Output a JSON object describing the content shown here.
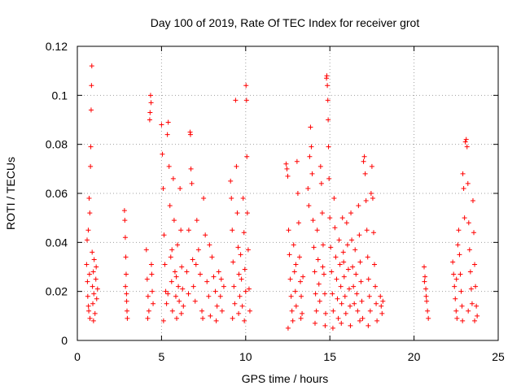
{
  "chart_data": {
    "type": "scatter",
    "title": "Day 100 of 2019, Rate Of TEC Index for receiver grot",
    "xlabel": "GPS time / hours",
    "ylabel": "ROTI / TECUs",
    "xlim": [
      0,
      25
    ],
    "ylim": [
      0,
      0.12
    ],
    "x_ticks": [
      0,
      5,
      10,
      15,
      20,
      25
    ],
    "x_tick_labels": [
      "0",
      "5",
      "10",
      "15",
      "20",
      "25"
    ],
    "y_ticks": [
      0,
      0.02,
      0.04,
      0.06,
      0.08,
      0.1,
      0.12
    ],
    "y_tick_labels": [
      "0",
      "0.02",
      "0.04",
      "0.06",
      "0.08",
      "0.1",
      "0.12"
    ],
    "grid": true,
    "marker": "+",
    "color": "#ff0000",
    "series": [
      {
        "points": [
          [
            0.55,
            0.031
          ],
          [
            0.6,
            0.024
          ],
          [
            0.62,
            0.018
          ],
          [
            0.65,
            0.045
          ],
          [
            0.68,
            0.012
          ],
          [
            0.7,
            0.058
          ],
          [
            0.72,
            0.027
          ],
          [
            0.75,
            0.009
          ],
          [
            0.78,
            0.071
          ],
          [
            0.8,
            0.079
          ],
          [
            0.82,
            0.094
          ],
          [
            0.84,
            0.104
          ],
          [
            0.86,
            0.112
          ],
          [
            0.88,
            0.036
          ],
          [
            0.9,
            0.022
          ],
          [
            0.92,
            0.015
          ],
          [
            0.95,
            0.028
          ],
          [
            0.98,
            0.019
          ],
          [
            1.0,
            0.033
          ],
          [
            1.05,
            0.011
          ],
          [
            1.1,
            0.025
          ],
          [
            1.15,
            0.017
          ],
          [
            1.2,
            0.021
          ],
          [
            0.58,
            0.041
          ],
          [
            0.74,
            0.052
          ],
          [
            0.96,
            0.008
          ],
          [
            1.12,
            0.03
          ],
          [
            0.66,
            0.014
          ],
          [
            2.8,
            0.053
          ],
          [
            2.82,
            0.049
          ],
          [
            2.85,
            0.042
          ],
          [
            2.88,
            0.034
          ],
          [
            2.9,
            0.027
          ],
          [
            2.92,
            0.019
          ],
          [
            2.95,
            0.012
          ],
          [
            2.97,
            0.009
          ],
          [
            2.86,
            0.022
          ],
          [
            2.93,
            0.016
          ],
          [
            4.1,
            0.037
          ],
          [
            4.15,
            0.025
          ],
          [
            4.2,
            0.018
          ],
          [
            4.25,
            0.012
          ],
          [
            4.3,
            0.09
          ],
          [
            4.32,
            0.093
          ],
          [
            4.35,
            0.1
          ],
          [
            4.38,
            0.097
          ],
          [
            4.4,
            0.031
          ],
          [
            4.45,
            0.02
          ],
          [
            4.5,
            0.015
          ],
          [
            4.18,
            0.009
          ],
          [
            4.42,
            0.027
          ],
          [
            5.0,
            0.088
          ],
          [
            5.05,
            0.076
          ],
          [
            5.1,
            0.062
          ],
          [
            5.15,
            0.043
          ],
          [
            5.2,
            0.031
          ],
          [
            5.25,
            0.02
          ],
          [
            5.3,
            0.015
          ],
          [
            5.35,
            0.084
          ],
          [
            5.4,
            0.089
          ],
          [
            5.45,
            0.071
          ],
          [
            5.5,
            0.055
          ],
          [
            5.55,
            0.034
          ],
          [
            5.6,
            0.024
          ],
          [
            5.65,
            0.012
          ],
          [
            5.7,
            0.066
          ],
          [
            5.75,
            0.049
          ],
          [
            5.8,
            0.028
          ],
          [
            5.85,
            0.018
          ],
          [
            5.9,
            0.009
          ],
          [
            5.95,
            0.039
          ],
          [
            6.0,
            0.022
          ],
          [
            6.05,
            0.016
          ],
          [
            6.1,
            0.062
          ],
          [
            6.15,
            0.045
          ],
          [
            6.2,
            0.03
          ],
          [
            5.12,
            0.008
          ],
          [
            5.38,
            0.019
          ],
          [
            5.62,
            0.037
          ],
          [
            5.88,
            0.026
          ],
          [
            6.18,
            0.011
          ],
          [
            6.25,
            0.021
          ],
          [
            6.3,
            0.014
          ],
          [
            6.5,
            0.028
          ],
          [
            6.6,
            0.019
          ],
          [
            6.7,
            0.085
          ],
          [
            6.72,
            0.084
          ],
          [
            6.75,
            0.07
          ],
          [
            6.8,
            0.064
          ],
          [
            6.85,
            0.033
          ],
          [
            6.9,
            0.022
          ],
          [
            7.0,
            0.016
          ],
          [
            7.1,
            0.049
          ],
          [
            7.2,
            0.037
          ],
          [
            7.3,
            0.027
          ],
          [
            7.4,
            0.012
          ],
          [
            7.5,
            0.058
          ],
          [
            7.6,
            0.043
          ],
          [
            7.7,
            0.024
          ],
          [
            7.8,
            0.018
          ],
          [
            7.9,
            0.01
          ],
          [
            8.0,
            0.034
          ],
          [
            8.1,
            0.026
          ],
          [
            8.2,
            0.02
          ],
          [
            8.3,
            0.014
          ],
          [
            8.4,
            0.028
          ],
          [
            8.5,
            0.018
          ],
          [
            8.6,
            0.012
          ],
          [
            8.7,
            0.022
          ],
          [
            6.62,
            0.045
          ],
          [
            7.05,
            0.031
          ],
          [
            7.45,
            0.009
          ],
          [
            7.85,
            0.039
          ],
          [
            8.25,
            0.008
          ],
          [
            8.55,
            0.025
          ],
          [
            9.1,
            0.065
          ],
          [
            9.15,
            0.058
          ],
          [
            9.2,
            0.045
          ],
          [
            9.25,
            0.032
          ],
          [
            9.3,
            0.022
          ],
          [
            9.35,
            0.015
          ],
          [
            9.4,
            0.098
          ],
          [
            9.45,
            0.071
          ],
          [
            9.5,
            0.052
          ],
          [
            9.55,
            0.038
          ],
          [
            9.6,
            0.027
          ],
          [
            9.65,
            0.018
          ],
          [
            9.7,
            0.035
          ],
          [
            9.75,
            0.025
          ],
          [
            9.8,
            0.014
          ],
          [
            9.85,
            0.058
          ],
          [
            9.9,
            0.044
          ],
          [
            9.95,
            0.029
          ],
          [
            10.0,
            0.02
          ],
          [
            10.02,
            0.104
          ],
          [
            10.05,
            0.098
          ],
          [
            10.07,
            0.075
          ],
          [
            10.1,
            0.052
          ],
          [
            10.15,
            0.037
          ],
          [
            10.2,
            0.021
          ],
          [
            10.25,
            0.012
          ],
          [
            9.22,
            0.009
          ],
          [
            9.58,
            0.011
          ],
          [
            9.92,
            0.008
          ],
          [
            12.4,
            0.072
          ],
          [
            12.45,
            0.07
          ],
          [
            12.5,
            0.067
          ],
          [
            12.55,
            0.045
          ],
          [
            12.6,
            0.035
          ],
          [
            12.65,
            0.025
          ],
          [
            12.7,
            0.018
          ],
          [
            12.75,
            0.012
          ],
          [
            12.8,
            0.008
          ],
          [
            12.85,
            0.039
          ],
          [
            12.9,
            0.028
          ],
          [
            12.95,
            0.02
          ],
          [
            13.0,
            0.014
          ],
          [
            13.05,
            0.073
          ],
          [
            13.1,
            0.06
          ],
          [
            13.15,
            0.048
          ],
          [
            13.2,
            0.034
          ],
          [
            13.25,
            0.024
          ],
          [
            13.3,
            0.018
          ],
          [
            13.35,
            0.011
          ],
          [
            13.4,
            0.026
          ],
          [
            12.52,
            0.005
          ],
          [
            12.98,
            0.031
          ],
          [
            13.28,
            0.009
          ],
          [
            13.7,
            0.062
          ],
          [
            13.75,
            0.055
          ],
          [
            13.8,
            0.075
          ],
          [
            13.85,
            0.087
          ],
          [
            13.9,
            0.079
          ],
          [
            13.95,
            0.068
          ],
          [
            14.0,
            0.049
          ],
          [
            14.05,
            0.038
          ],
          [
            14.1,
            0.028
          ],
          [
            14.15,
            0.019
          ],
          [
            14.2,
            0.012
          ],
          [
            14.25,
            0.045
          ],
          [
            14.3,
            0.033
          ],
          [
            14.35,
            0.023
          ],
          [
            14.4,
            0.016
          ],
          [
            14.45,
            0.071
          ],
          [
            14.5,
            0.064
          ],
          [
            14.55,
            0.052
          ],
          [
            14.6,
            0.039
          ],
          [
            14.65,
            0.027
          ],
          [
            14.7,
            0.019
          ],
          [
            14.75,
            0.011
          ],
          [
            14.8,
            0.107
          ],
          [
            14.82,
            0.108
          ],
          [
            14.85,
            0.104
          ],
          [
            14.88,
            0.098
          ],
          [
            14.9,
            0.09
          ],
          [
            14.92,
            0.079
          ],
          [
            14.95,
            0.066
          ],
          [
            15.0,
            0.05
          ],
          [
            15.05,
            0.038
          ],
          [
            15.1,
            0.028
          ],
          [
            15.15,
            0.019
          ],
          [
            15.2,
            0.012
          ],
          [
            15.25,
            0.058
          ],
          [
            15.3,
            0.046
          ],
          [
            15.35,
            0.034
          ],
          [
            15.4,
            0.025
          ],
          [
            15.45,
            0.017
          ],
          [
            15.5,
            0.009
          ],
          [
            15.55,
            0.041
          ],
          [
            15.6,
            0.031
          ],
          [
            15.65,
            0.022
          ],
          [
            15.7,
            0.015
          ],
          [
            15.75,
            0.05
          ],
          [
            15.8,
            0.036
          ],
          [
            15.85,
            0.026
          ],
          [
            15.9,
            0.018
          ],
          [
            15.95,
            0.011
          ],
          [
            16.0,
            0.048
          ],
          [
            16.05,
            0.039
          ],
          [
            16.1,
            0.029
          ],
          [
            16.15,
            0.021
          ],
          [
            16.2,
            0.014
          ],
          [
            16.25,
            0.052
          ],
          [
            16.3,
            0.041
          ],
          [
            16.35,
            0.03
          ],
          [
            16.4,
            0.022
          ],
          [
            16.45,
            0.015
          ],
          [
            16.5,
            0.037
          ],
          [
            16.55,
            0.027
          ],
          [
            16.6,
            0.019
          ],
          [
            16.65,
            0.012
          ],
          [
            16.7,
            0.055
          ],
          [
            16.75,
            0.043
          ],
          [
            16.8,
            0.032
          ],
          [
            16.85,
            0.024
          ],
          [
            16.9,
            0.016
          ],
          [
            16.95,
            0.009
          ],
          [
            17.0,
            0.073
          ],
          [
            17.05,
            0.075
          ],
          [
            17.1,
            0.068
          ],
          [
            17.15,
            0.057
          ],
          [
            17.2,
            0.045
          ],
          [
            17.25,
            0.034
          ],
          [
            17.3,
            0.025
          ],
          [
            17.35,
            0.018
          ],
          [
            17.4,
            0.012
          ],
          [
            17.45,
            0.06
          ],
          [
            17.5,
            0.071
          ],
          [
            17.55,
            0.058
          ],
          [
            17.6,
            0.044
          ],
          [
            17.65,
            0.031
          ],
          [
            17.7,
            0.022
          ],
          [
            17.75,
            0.015
          ],
          [
            17.8,
            0.008
          ],
          [
            18.0,
            0.018
          ],
          [
            18.05,
            0.014
          ],
          [
            18.1,
            0.011
          ],
          [
            18.15,
            0.016
          ],
          [
            14.12,
            0.007
          ],
          [
            14.72,
            0.006
          ],
          [
            15.18,
            0.005
          ],
          [
            15.68,
            0.007
          ],
          [
            16.22,
            0.006
          ],
          [
            16.78,
            0.008
          ],
          [
            17.28,
            0.006
          ],
          [
            14.58,
            0.03
          ],
          [
            15.82,
            0.032
          ],
          [
            20.6,
            0.03
          ],
          [
            20.65,
            0.026
          ],
          [
            20.7,
            0.021
          ],
          [
            20.75,
            0.016
          ],
          [
            20.8,
            0.012
          ],
          [
            20.85,
            0.009
          ],
          [
            20.72,
            0.018
          ],
          [
            20.62,
            0.024
          ],
          [
            22.3,
            0.032
          ],
          [
            22.35,
            0.027
          ],
          [
            22.4,
            0.022
          ],
          [
            22.45,
            0.017
          ],
          [
            22.5,
            0.012
          ],
          [
            22.55,
            0.009
          ],
          [
            22.6,
            0.039
          ],
          [
            22.65,
            0.045
          ],
          [
            22.7,
            0.035
          ],
          [
            22.75,
            0.027
          ],
          [
            22.8,
            0.02
          ],
          [
            22.85,
            0.014
          ],
          [
            22.9,
            0.068
          ],
          [
            22.95,
            0.062
          ],
          [
            23.0,
            0.05
          ],
          [
            23.05,
            0.081
          ],
          [
            23.1,
            0.082
          ],
          [
            23.15,
            0.079
          ],
          [
            23.2,
            0.064
          ],
          [
            23.25,
            0.048
          ],
          [
            23.3,
            0.037
          ],
          [
            23.35,
            0.028
          ],
          [
            23.4,
            0.021
          ],
          [
            23.45,
            0.015
          ],
          [
            23.5,
            0.057
          ],
          [
            23.55,
            0.044
          ],
          [
            23.6,
            0.031
          ],
          [
            23.65,
            0.022
          ],
          [
            23.7,
            0.014
          ],
          [
            23.75,
            0.01
          ],
          [
            22.52,
            0.025
          ],
          [
            22.88,
            0.008
          ],
          [
            23.22,
            0.012
          ],
          [
            23.6,
            0.008
          ]
        ]
      }
    ]
  }
}
